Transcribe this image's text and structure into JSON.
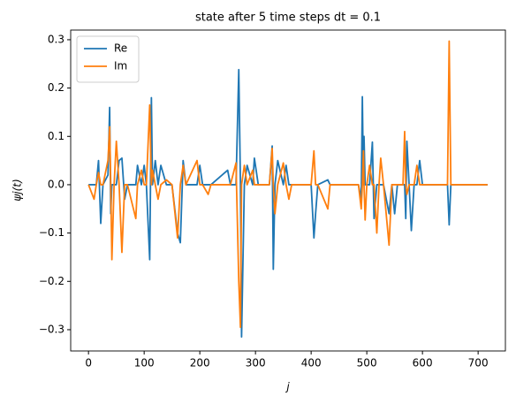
{
  "chart_data": {
    "type": "line",
    "title": "state after 5 time steps dt = 0.1",
    "xlabel": "j",
    "ylabel": "ψj(t)",
    "legend": "upper left",
    "xlim": [
      -32,
      749
    ],
    "ylim": [
      -0.344,
      0.32
    ],
    "xticks": [
      0,
      100,
      200,
      300,
      400,
      500,
      600,
      700
    ],
    "yticks": [
      {
        "value": -0.3,
        "label": "−0.3"
      },
      {
        "value": -0.2,
        "label": "−0.2"
      },
      {
        "value": -0.1,
        "label": "−0.1"
      },
      {
        "value": 0,
        "label": "0.0"
      },
      0.1,
      0.2,
      0.3
    ],
    "x": [
      0,
      10,
      14,
      18,
      22,
      26,
      35,
      38,
      40,
      42,
      46,
      50,
      55,
      60,
      65,
      70,
      85,
      88,
      95,
      100,
      104,
      110,
      113,
      115,
      120,
      125,
      130,
      140,
      150,
      160,
      165,
      170,
      175,
      195,
      200,
      205,
      215,
      220,
      250,
      255,
      265,
      270,
      273,
      275,
      280,
      285,
      295,
      298,
      305,
      325,
      330,
      332,
      335,
      340,
      350,
      355,
      360,
      365,
      400,
      405,
      408,
      412,
      430,
      434,
      485,
      490,
      492,
      494,
      495,
      497,
      500,
      505,
      510,
      513,
      518,
      522,
      525,
      530,
      540,
      545,
      550,
      555,
      565,
      568,
      570,
      572,
      576,
      580,
      585,
      590,
      595,
      600,
      645,
      648,
      651,
      717
    ],
    "series": [
      {
        "name": "Re",
        "color": "#1f77b4",
        "values": [
          0,
          0,
          0,
          0.05,
          -0.08,
          0,
          0.02,
          0.16,
          -0.06,
          0,
          0,
          0,
          0.05,
          0.055,
          -0.03,
          0,
          0,
          0.04,
          0,
          0.04,
          0,
          -0.155,
          0.18,
          0,
          0.05,
          0,
          0.04,
          0,
          0,
          -0.1,
          -0.12,
          0.05,
          0,
          0,
          0.04,
          0,
          0,
          0,
          0.03,
          0,
          0,
          0.238,
          0,
          -0.315,
          0,
          0.04,
          0,
          0.055,
          0,
          0,
          0.08,
          -0.175,
          0,
          0.05,
          0,
          0.04,
          0,
          0,
          0,
          -0.11,
          -0.06,
          0,
          0.01,
          0,
          0,
          -0.03,
          0.182,
          0,
          0.1,
          0,
          0,
          0,
          0.088,
          -0.07,
          0,
          0,
          0,
          0,
          -0.06,
          0,
          -0.06,
          0,
          0,
          0,
          -0.07,
          0.09,
          0,
          -0.095,
          0,
          0,
          0.05,
          0,
          0,
          -0.083,
          0,
          0
        ]
      },
      {
        "name": "Im",
        "color": "#ff7f0e",
        "values": [
          0,
          -0.03,
          0,
          0.025,
          0,
          0,
          0.05,
          0.12,
          0,
          -0.155,
          0,
          0.09,
          0,
          -0.14,
          0,
          0,
          -0.07,
          0,
          0.03,
          0,
          0,
          0.165,
          0,
          0.03,
          0,
          -0.03,
          0,
          0.01,
          0,
          -0.11,
          0,
          0.04,
          0,
          0.05,
          0,
          0,
          -0.02,
          0,
          0,
          0,
          0.045,
          -0.2,
          -0.295,
          0,
          0.04,
          0,
          0.03,
          0,
          0,
          0,
          0.075,
          0,
          -0.06,
          0,
          0.045,
          0,
          -0.03,
          0,
          0,
          0.07,
          0,
          0,
          -0.05,
          0,
          0,
          -0.05,
          0,
          0.07,
          0,
          -0.073,
          0,
          0.04,
          0,
          0,
          -0.1,
          0,
          0.055,
          0,
          -0.125,
          0,
          0,
          0,
          0,
          0.11,
          0,
          -0.02,
          0,
          0,
          0,
          0.04,
          0,
          0,
          0,
          0.297,
          0,
          0
        ]
      }
    ]
  }
}
